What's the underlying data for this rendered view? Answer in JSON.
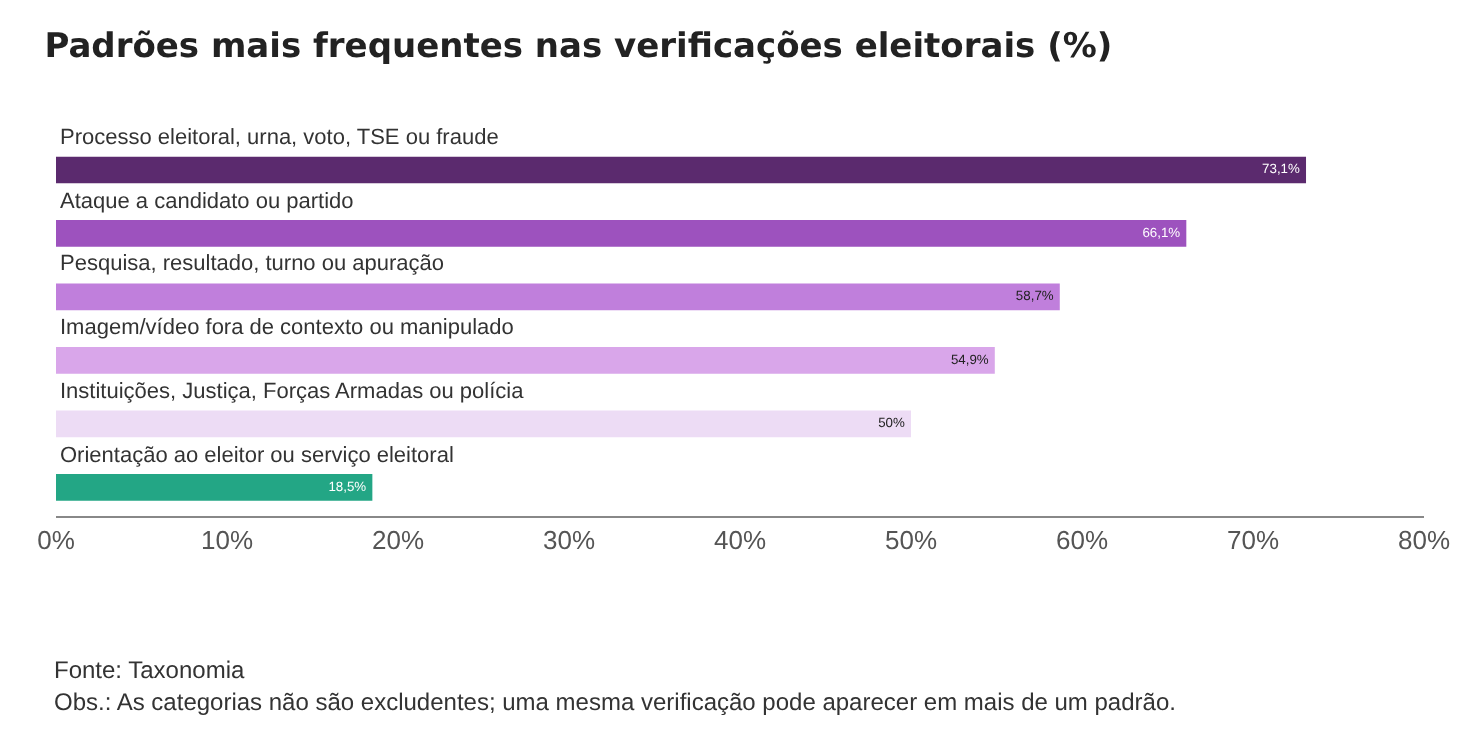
{
  "chart_data": {
    "type": "bar",
    "orientation": "horizontal",
    "title": "Padrões mais frequentes nas verificações eleitorais (%)",
    "categories": [
      "Processo eleitoral, urna, voto, TSE ou fraude",
      "Ataque a candidato ou partido",
      "Pesquisa, resultado, turno ou apuração",
      "Imagem/vídeo fora de contexto ou manipulado",
      "Instituições, Justiça, Forças Armadas ou polícia",
      "Orientação ao eleitor ou serviço eleitoral"
    ],
    "values": [
      73.1,
      66.1,
      58.7,
      54.9,
      50,
      18.5
    ],
    "value_labels": [
      "73,1%",
      "66,1%",
      "58,7%",
      "54,9%",
      "50%",
      "18,5%"
    ],
    "colors": [
      "#5b2a6e",
      "#9d52be",
      "#c07fdc",
      "#d9a6ea",
      "#eddcf5",
      "#23a685"
    ],
    "xlim": [
      0,
      80
    ],
    "xticks": [
      {
        "value": 0,
        "label": "0%"
      },
      {
        "value": 10,
        "label": "10%"
      },
      {
        "value": 20,
        "label": "20%"
      },
      {
        "value": 30,
        "label": "30%"
      },
      {
        "value": 40,
        "label": "40%"
      },
      {
        "value": 50,
        "label": "50%"
      },
      {
        "value": 60,
        "label": "60%"
      },
      {
        "value": 70,
        "label": "70%"
      },
      {
        "value": 80,
        "label": "80%"
      }
    ],
    "grid": false,
    "annotations": [
      "Fonte: Taxonomia",
      "Obs.: As categorias não são excludentes; uma mesma verificação pode aparecer em mais de um padrão."
    ]
  }
}
